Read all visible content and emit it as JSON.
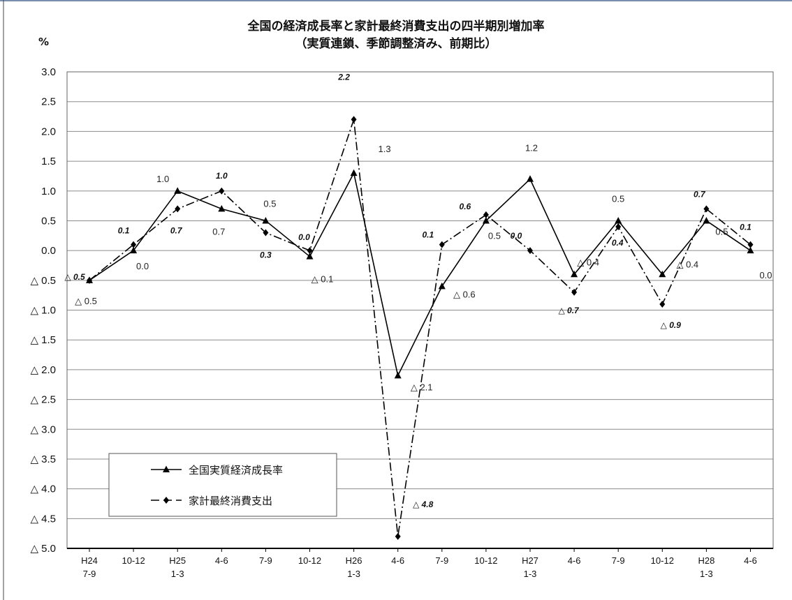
{
  "chart_data": {
    "type": "line",
    "title": "全国の経済成長率と家計最終消費支出の四半期別増加率",
    "subtitle": "（実質連鎖、季節調整済み、前期比）",
    "ylabel": "%",
    "ylim": [
      -5.0,
      3.0
    ],
    "yticks": [
      3.0,
      2.5,
      2.0,
      1.5,
      1.0,
      0.5,
      0.0,
      -0.5,
      -1.0,
      -1.5,
      -2.0,
      -2.5,
      -3.0,
      -3.5,
      -4.0,
      -4.5,
      -5.0
    ],
    "ytick_labels": [
      "3.0",
      "2.5",
      "2.0",
      "1.5",
      "1.0",
      "0.5",
      "0.0",
      "△ 0.5",
      "△ 1.0",
      "△ 1.5",
      "△ 2.0",
      "△ 2.5",
      "△ 3.0",
      "△ 3.5",
      "△ 4.0",
      "△ 4.5",
      "△ 5.0"
    ],
    "categories": [
      [
        "H24",
        "7-9"
      ],
      [
        "10-12"
      ],
      [
        "H25",
        "1-3"
      ],
      [
        "4-6"
      ],
      [
        "7-9"
      ],
      [
        "10-12"
      ],
      [
        "H26",
        "1-3"
      ],
      [
        "4-6"
      ],
      [
        "7-9"
      ],
      [
        "10-12"
      ],
      [
        "H27",
        "1-3"
      ],
      [
        "4-6"
      ],
      [
        "7-9"
      ],
      [
        "10-12"
      ],
      [
        "H28",
        "1-3"
      ],
      [
        "4-6"
      ]
    ],
    "grid": true,
    "legend_position": "bottom-left",
    "series": [
      {
        "name": "全国実質経済成長率",
        "color": "#000000",
        "line_style": "solid",
        "marker": "triangle",
        "values": [
          -0.5,
          0.0,
          1.0,
          0.7,
          0.5,
          -0.1,
          1.3,
          -2.1,
          -0.6,
          0.5,
          1.2,
          -0.4,
          0.5,
          -0.4,
          0.5,
          0.0
        ],
        "labels": [
          "△ 0.5",
          "0.0",
          "1.0",
          "0.7",
          "0.5",
          "△ 0.1",
          "1.3",
          "△ 2.1",
          "△ 0.6",
          "0.5",
          "1.2",
          "△ 0.4",
          "0.5",
          "△ 0.4",
          "0.5",
          "0.0"
        ]
      },
      {
        "name": "家計最終消費支出",
        "color": "#000000",
        "line_style": "dash-dot",
        "marker": "diamond",
        "values": [
          -0.5,
          0.1,
          0.7,
          1.0,
          0.3,
          0.0,
          2.2,
          -4.8,
          0.1,
          0.6,
          0.0,
          -0.7,
          0.4,
          -0.9,
          0.7,
          0.1
        ],
        "labels": [
          "△ 0.5",
          "0.1",
          "0.7",
          "1.0",
          "0.3",
          "0.0",
          "2.2",
          "△ 4.8",
          "0.1",
          "0.6",
          "0.0",
          "△ 0.7",
          "0.4",
          "△ 0.9",
          "0.7",
          "0.1"
        ]
      }
    ]
  }
}
